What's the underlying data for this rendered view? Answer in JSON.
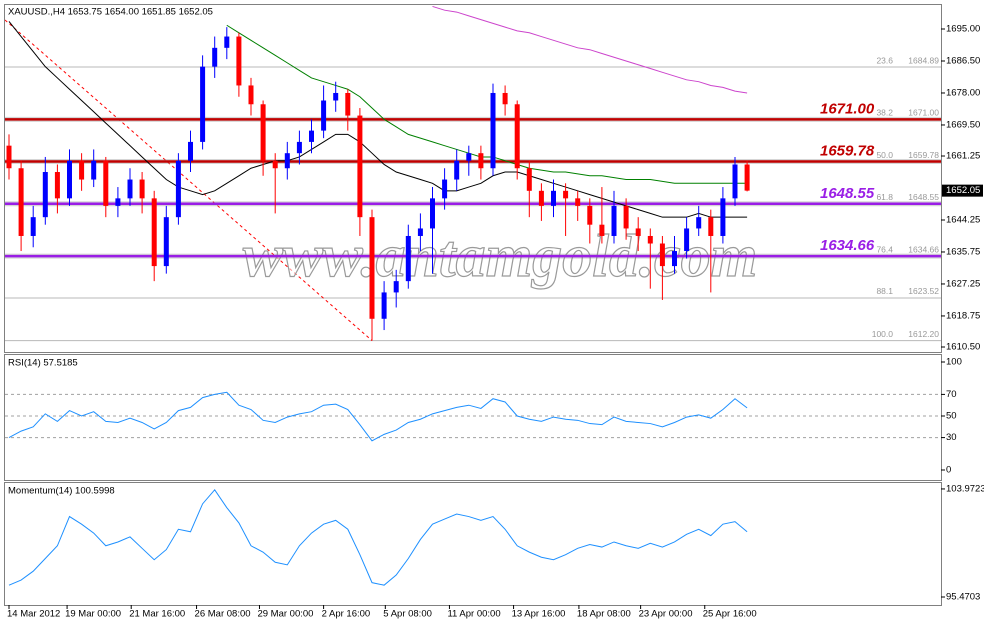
{
  "chart_data": [
    {
      "type": "candlestick",
      "title": "XAUUSD.,H4  1653.75 1654.00 1651.85 1652.05",
      "watermark": "www.antamgold.com",
      "up_color": "#0000ff",
      "down_color": "#ff0000",
      "ylim": [
        1609.17,
        1701.38
      ],
      "yticks": [
        {
          "value": 1695,
          "label": "1695.00"
        },
        {
          "value": 1686.5,
          "label": "1686.50"
        },
        {
          "value": 1678,
          "label": "1678.00"
        },
        {
          "value": 1669.5,
          "label": "1669.50"
        },
        {
          "value": 1661.25,
          "label": "1661.25"
        },
        {
          "value": 1644.25,
          "label": "1644.25"
        },
        {
          "value": 1635.75,
          "label": "1635.75"
        },
        {
          "value": 1627.25,
          "label": "1627.25"
        },
        {
          "value": 1618.75,
          "label": "1618.75"
        },
        {
          "value": 1610.5,
          "label": "1610.50"
        }
      ],
      "last_price": 1652.05,
      "xticks": [
        {
          "value": 0,
          "label": "14 Mar 2012"
        },
        {
          "value": 4.8,
          "label": "19 Mar 00:00"
        },
        {
          "value": 10.1,
          "label": "21 Mar 16:00"
        },
        {
          "value": 15.5,
          "label": "26 Mar 08:00"
        },
        {
          "value": 20.7,
          "label": "29 Mar 00:00"
        },
        {
          "value": 26,
          "label": "2 Apr 16:00"
        },
        {
          "value": 31.1,
          "label": "5 Apr 08:00"
        },
        {
          "value": 36.4,
          "label": "11 Apr 00:00"
        },
        {
          "value": 41.7,
          "label": "13 Apr 16:00"
        },
        {
          "value": 47.1,
          "label": "18 Apr 08:00"
        },
        {
          "value": 52.2,
          "label": "23 Apr 00:00"
        },
        {
          "value": 57.5,
          "label": "25 Apr 16:00"
        }
      ],
      "ohlc": [
        [
          1664,
          1667,
          1655,
          1658
        ],
        [
          1658,
          1660,
          1636,
          1640
        ],
        [
          1640,
          1648,
          1637,
          1645
        ],
        [
          1645,
          1661,
          1643,
          1657
        ],
        [
          1657,
          1659,
          1646,
          1650
        ],
        [
          1650,
          1663,
          1648,
          1660
        ],
        [
          1660,
          1662,
          1652,
          1655
        ],
        [
          1655,
          1663,
          1653,
          1660
        ],
        [
          1660,
          1661,
          1645,
          1648
        ],
        [
          1648,
          1653,
          1645,
          1650
        ],
        [
          1650,
          1658,
          1648,
          1655
        ],
        [
          1655,
          1657,
          1646,
          1650
        ],
        [
          1650,
          1652,
          1628,
          1632
        ],
        [
          1632,
          1648,
          1630,
          1645
        ],
        [
          1645,
          1662,
          1643,
          1660
        ],
        [
          1660,
          1668,
          1657,
          1665
        ],
        [
          1665,
          1688,
          1663,
          1685
        ],
        [
          1685,
          1693,
          1682,
          1690
        ],
        [
          1690,
          1695.5,
          1687,
          1693
        ],
        [
          1693,
          1694,
          1677,
          1680
        ],
        [
          1680,
          1682,
          1672,
          1675
        ],
        [
          1675,
          1676,
          1656,
          1660
        ],
        [
          1660,
          1662,
          1646,
          1658
        ],
        [
          1658,
          1665,
          1655,
          1662
        ],
        [
          1662,
          1668,
          1659,
          1665
        ],
        [
          1665,
          1671,
          1662,
          1668
        ],
        [
          1668,
          1680,
          1666,
          1676
        ],
        [
          1676,
          1681,
          1673,
          1678
        ],
        [
          1678,
          1679,
          1668,
          1672
        ],
        [
          1672,
          1674,
          1640,
          1645
        ],
        [
          1645,
          1647,
          1612.2,
          1618
        ],
        [
          1618,
          1628,
          1615,
          1625
        ],
        [
          1625,
          1631,
          1621,
          1628
        ],
        [
          1628,
          1643,
          1626,
          1640
        ],
        [
          1640,
          1646,
          1636,
          1642
        ],
        [
          1642,
          1653,
          1630,
          1650
        ],
        [
          1650,
          1658,
          1647,
          1655
        ],
        [
          1655,
          1663,
          1652,
          1660
        ],
        [
          1660,
          1664,
          1656,
          1662
        ],
        [
          1662,
          1664,
          1655,
          1658
        ],
        [
          1658,
          1680.5,
          1656,
          1678
        ],
        [
          1678,
          1680,
          1672,
          1675
        ],
        [
          1675,
          1676,
          1655,
          1658
        ],
        [
          1658,
          1660,
          1645,
          1652
        ],
        [
          1652,
          1654,
          1644,
          1648
        ],
        [
          1648,
          1655,
          1645,
          1652
        ],
        [
          1652,
          1654,
          1640,
          1650
        ],
        [
          1650,
          1652,
          1644,
          1648
        ],
        [
          1648,
          1650,
          1638,
          1643
        ],
        [
          1643,
          1653,
          1638,
          1640
        ],
        [
          1640,
          1652,
          1638,
          1648
        ],
        [
          1648,
          1650,
          1639,
          1642
        ],
        [
          1642,
          1645,
          1636,
          1640
        ],
        [
          1640,
          1642,
          1626,
          1638
        ],
        [
          1638,
          1640,
          1623,
          1632
        ],
        [
          1632,
          1640,
          1630,
          1636
        ],
        [
          1636,
          1645,
          1634,
          1642
        ],
        [
          1642,
          1648,
          1640,
          1645
        ],
        [
          1645,
          1647,
          1625,
          1640
        ],
        [
          1640,
          1653,
          1638,
          1650
        ],
        [
          1650,
          1661,
          1648,
          1659
        ],
        [
          1659,
          1660,
          1651.85,
          1652.05
        ]
      ],
      "moving_averages": [
        {
          "color": "#000000",
          "values": [
            1697,
            1693,
            1689,
            1685,
            1682,
            1679,
            1676,
            1673,
            1670,
            1667,
            1664,
            1661,
            1658,
            1655,
            1653,
            1652,
            1651,
            1652,
            1654,
            1656,
            1658,
            1659,
            1660,
            1660,
            1661,
            1663,
            1665,
            1667,
            1667,
            1665,
            1662,
            1659,
            1657,
            1656,
            1655,
            1654,
            1652,
            1652,
            1653,
            1654,
            1656,
            1657,
            1657,
            1656,
            1655,
            1654,
            1653,
            1652,
            1651,
            1650,
            1649,
            1648,
            1647,
            1646,
            1645,
            1645,
            1645,
            1646,
            1645,
            1645,
            1645,
            1645
          ]
        },
        {
          "color": "#008000",
          "values": [
            null,
            null,
            null,
            null,
            null,
            null,
            null,
            null,
            null,
            null,
            null,
            null,
            null,
            null,
            null,
            null,
            null,
            null,
            1696,
            1694,
            1692,
            1690,
            1688,
            1686,
            1684,
            1682,
            1681,
            1680,
            1679,
            1677,
            1674,
            1671,
            1669,
            1667,
            1666,
            1665,
            1664,
            1663,
            1662,
            1661,
            1661,
            1660,
            1659,
            1658,
            1657.5,
            1657,
            1657,
            1656.5,
            1656,
            1656,
            1655.5,
            1655,
            1655,
            1655,
            1654.5,
            1654,
            1654,
            1654,
            1654,
            1654,
            1654,
            1654
          ]
        },
        {
          "color": "#cc44cc",
          "values": [
            null,
            null,
            null,
            null,
            null,
            null,
            null,
            null,
            null,
            null,
            null,
            null,
            null,
            null,
            null,
            null,
            null,
            null,
            null,
            null,
            null,
            null,
            null,
            null,
            null,
            null,
            null,
            null,
            null,
            null,
            null,
            null,
            null,
            null,
            null,
            1701,
            1700,
            1699.5,
            1698.5,
            1697.5,
            1696.5,
            1695.5,
            1694.5,
            1694,
            1693,
            1692,
            1691,
            1690,
            1689.5,
            1688.5,
            1687.5,
            1686.5,
            1685.5,
            1684.5,
            1683.5,
            1682.5,
            1681.5,
            1681,
            1680,
            1679.5,
            1678.5,
            1678
          ]
        }
      ],
      "levels": [
        {
          "value": 1671,
          "label": "1671.00",
          "color": "#c00000"
        },
        {
          "value": 1659.78,
          "label": "1659.78",
          "color": "#c00000"
        },
        {
          "value": 1648.55,
          "label": "1648.55",
          "color": "#9a1ee6"
        },
        {
          "value": 1634.66,
          "label": "1634.66",
          "color": "#9a1ee6"
        }
      ],
      "fibo": {
        "color": "#ff0000",
        "level_color": "#b8b8b8",
        "from": {
          "index": -0.33,
          "price": 1697.4
        },
        "to": {
          "index": 30,
          "price": 1612.2
        },
        "levels": [
          {
            "ratio": 23.6,
            "price": 1684.89
          },
          {
            "ratio": 38.2,
            "price": {
              "value": 1671,
              "label": "1671.00"
            }
          },
          {
            "ratio": {
              "value": 50,
              "label": "50.0"
            },
            "price": 1659.78
          },
          {
            "ratio": 61.8,
            "price": 1648.55
          },
          {
            "ratio": 76.4,
            "price": 1634.66
          },
          {
            "ratio": 88.1,
            "price": 1623.52
          },
          {
            "ratio": {
              "value": 100,
              "label": "100.0"
            },
            "price": {
              "value": 1612.2,
              "label": "1612.20"
            }
          }
        ]
      }
    },
    {
      "type": "line",
      "title": "RSI(14) 57.5185",
      "color": "#1e90ff",
      "ylim": [
        -9.26,
        106.48
      ],
      "yticks": [
        0,
        30,
        50,
        70,
        100
      ],
      "levels": [
        30,
        50,
        70
      ],
      "values": [
        30,
        36,
        40,
        52,
        45,
        55,
        50,
        54,
        45,
        44,
        48,
        44,
        38,
        44,
        55,
        58,
        67,
        70,
        72,
        60,
        56,
        46,
        44,
        49,
        52,
        54,
        60,
        61,
        56,
        42,
        27,
        33,
        37,
        44,
        47,
        52,
        55,
        58,
        60,
        57,
        66,
        63,
        50,
        47,
        45,
        49,
        47,
        46,
        43,
        42,
        49,
        45,
        44,
        43,
        40,
        44,
        49,
        51,
        48,
        56,
        66,
        57.5185
      ]
    },
    {
      "type": "line",
      "title": "Momentum(14) 100.5998",
      "color": "#1e90ff",
      "ylim": [
        94.84,
        104.44
      ],
      "yticks": [
        95.4703,
        103.9723
      ],
      "values": [
        96.4,
        96.8,
        97.5,
        98.5,
        99.5,
        101.8,
        101.2,
        100.5,
        99.5,
        99.8,
        100.2,
        99.3,
        98.4,
        99.2,
        100.8,
        100.6,
        102.8,
        103.9,
        102.5,
        101.3,
        99.5,
        99,
        98.2,
        98,
        99.5,
        100.5,
        101.2,
        101.5,
        100.8,
        98.8,
        96.6,
        96.4,
        97.2,
        98.5,
        100,
        101.2,
        101.6,
        102,
        101.8,
        101.5,
        101.8,
        100.8,
        99.5,
        99,
        98.6,
        98.4,
        98.8,
        99.3,
        99.6,
        99.4,
        99.8,
        99.5,
        99.3,
        99.7,
        99.4,
        99.8,
        100.4,
        100.8,
        100.3,
        101.2,
        101.4,
        100.5998
      ]
    }
  ]
}
